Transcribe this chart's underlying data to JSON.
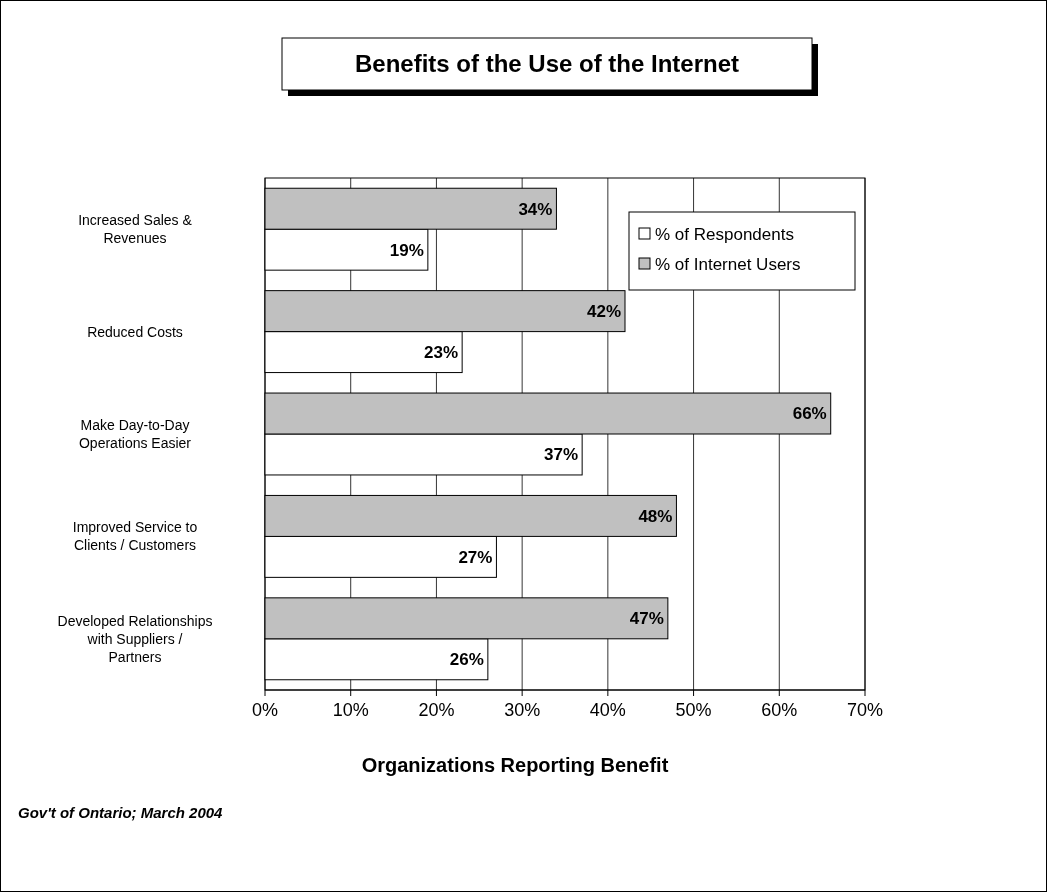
{
  "chart_data": {
    "type": "bar",
    "orientation": "horizontal",
    "title": "Benefits of the Use of the Internet",
    "xlabel": "Organizations Reporting Benefit",
    "categories": [
      "Increased Sales & Revenues",
      "Reduced Costs",
      "Make Day-to-Day Operations Easier",
      "Improved Service to Clients / Customers",
      "Developed Relationships with Suppliers / Partners"
    ],
    "series": [
      {
        "name": "% of Respondents",
        "color": "#ffffff",
        "values": [
          19,
          23,
          37,
          27,
          26
        ],
        "value_labels": [
          "19%",
          "23%",
          "37%",
          "27%",
          "26%"
        ]
      },
      {
        "name": "% of Internet Users",
        "color": "#c0c0c0",
        "values": [
          34,
          42,
          66,
          48,
          47
        ],
        "value_labels": [
          "34%",
          "42%",
          "66%",
          "48%",
          "47%"
        ]
      }
    ],
    "xlim": [
      0,
      70
    ],
    "xticks": [
      {
        "value": 0,
        "label": "0%"
      },
      {
        "value": 10,
        "label": "10%"
      },
      {
        "value": 20,
        "label": "20%"
      },
      {
        "value": 30,
        "label": "30%"
      },
      {
        "value": 40,
        "label": "40%"
      },
      {
        "value": 50,
        "label": "50%"
      },
      {
        "value": 60,
        "label": "60%"
      },
      {
        "value": 70,
        "label": "70%"
      }
    ],
    "grid": "x",
    "legend": "top right",
    "annotations": [
      "Gov't of Ontario; March 2004"
    ]
  }
}
